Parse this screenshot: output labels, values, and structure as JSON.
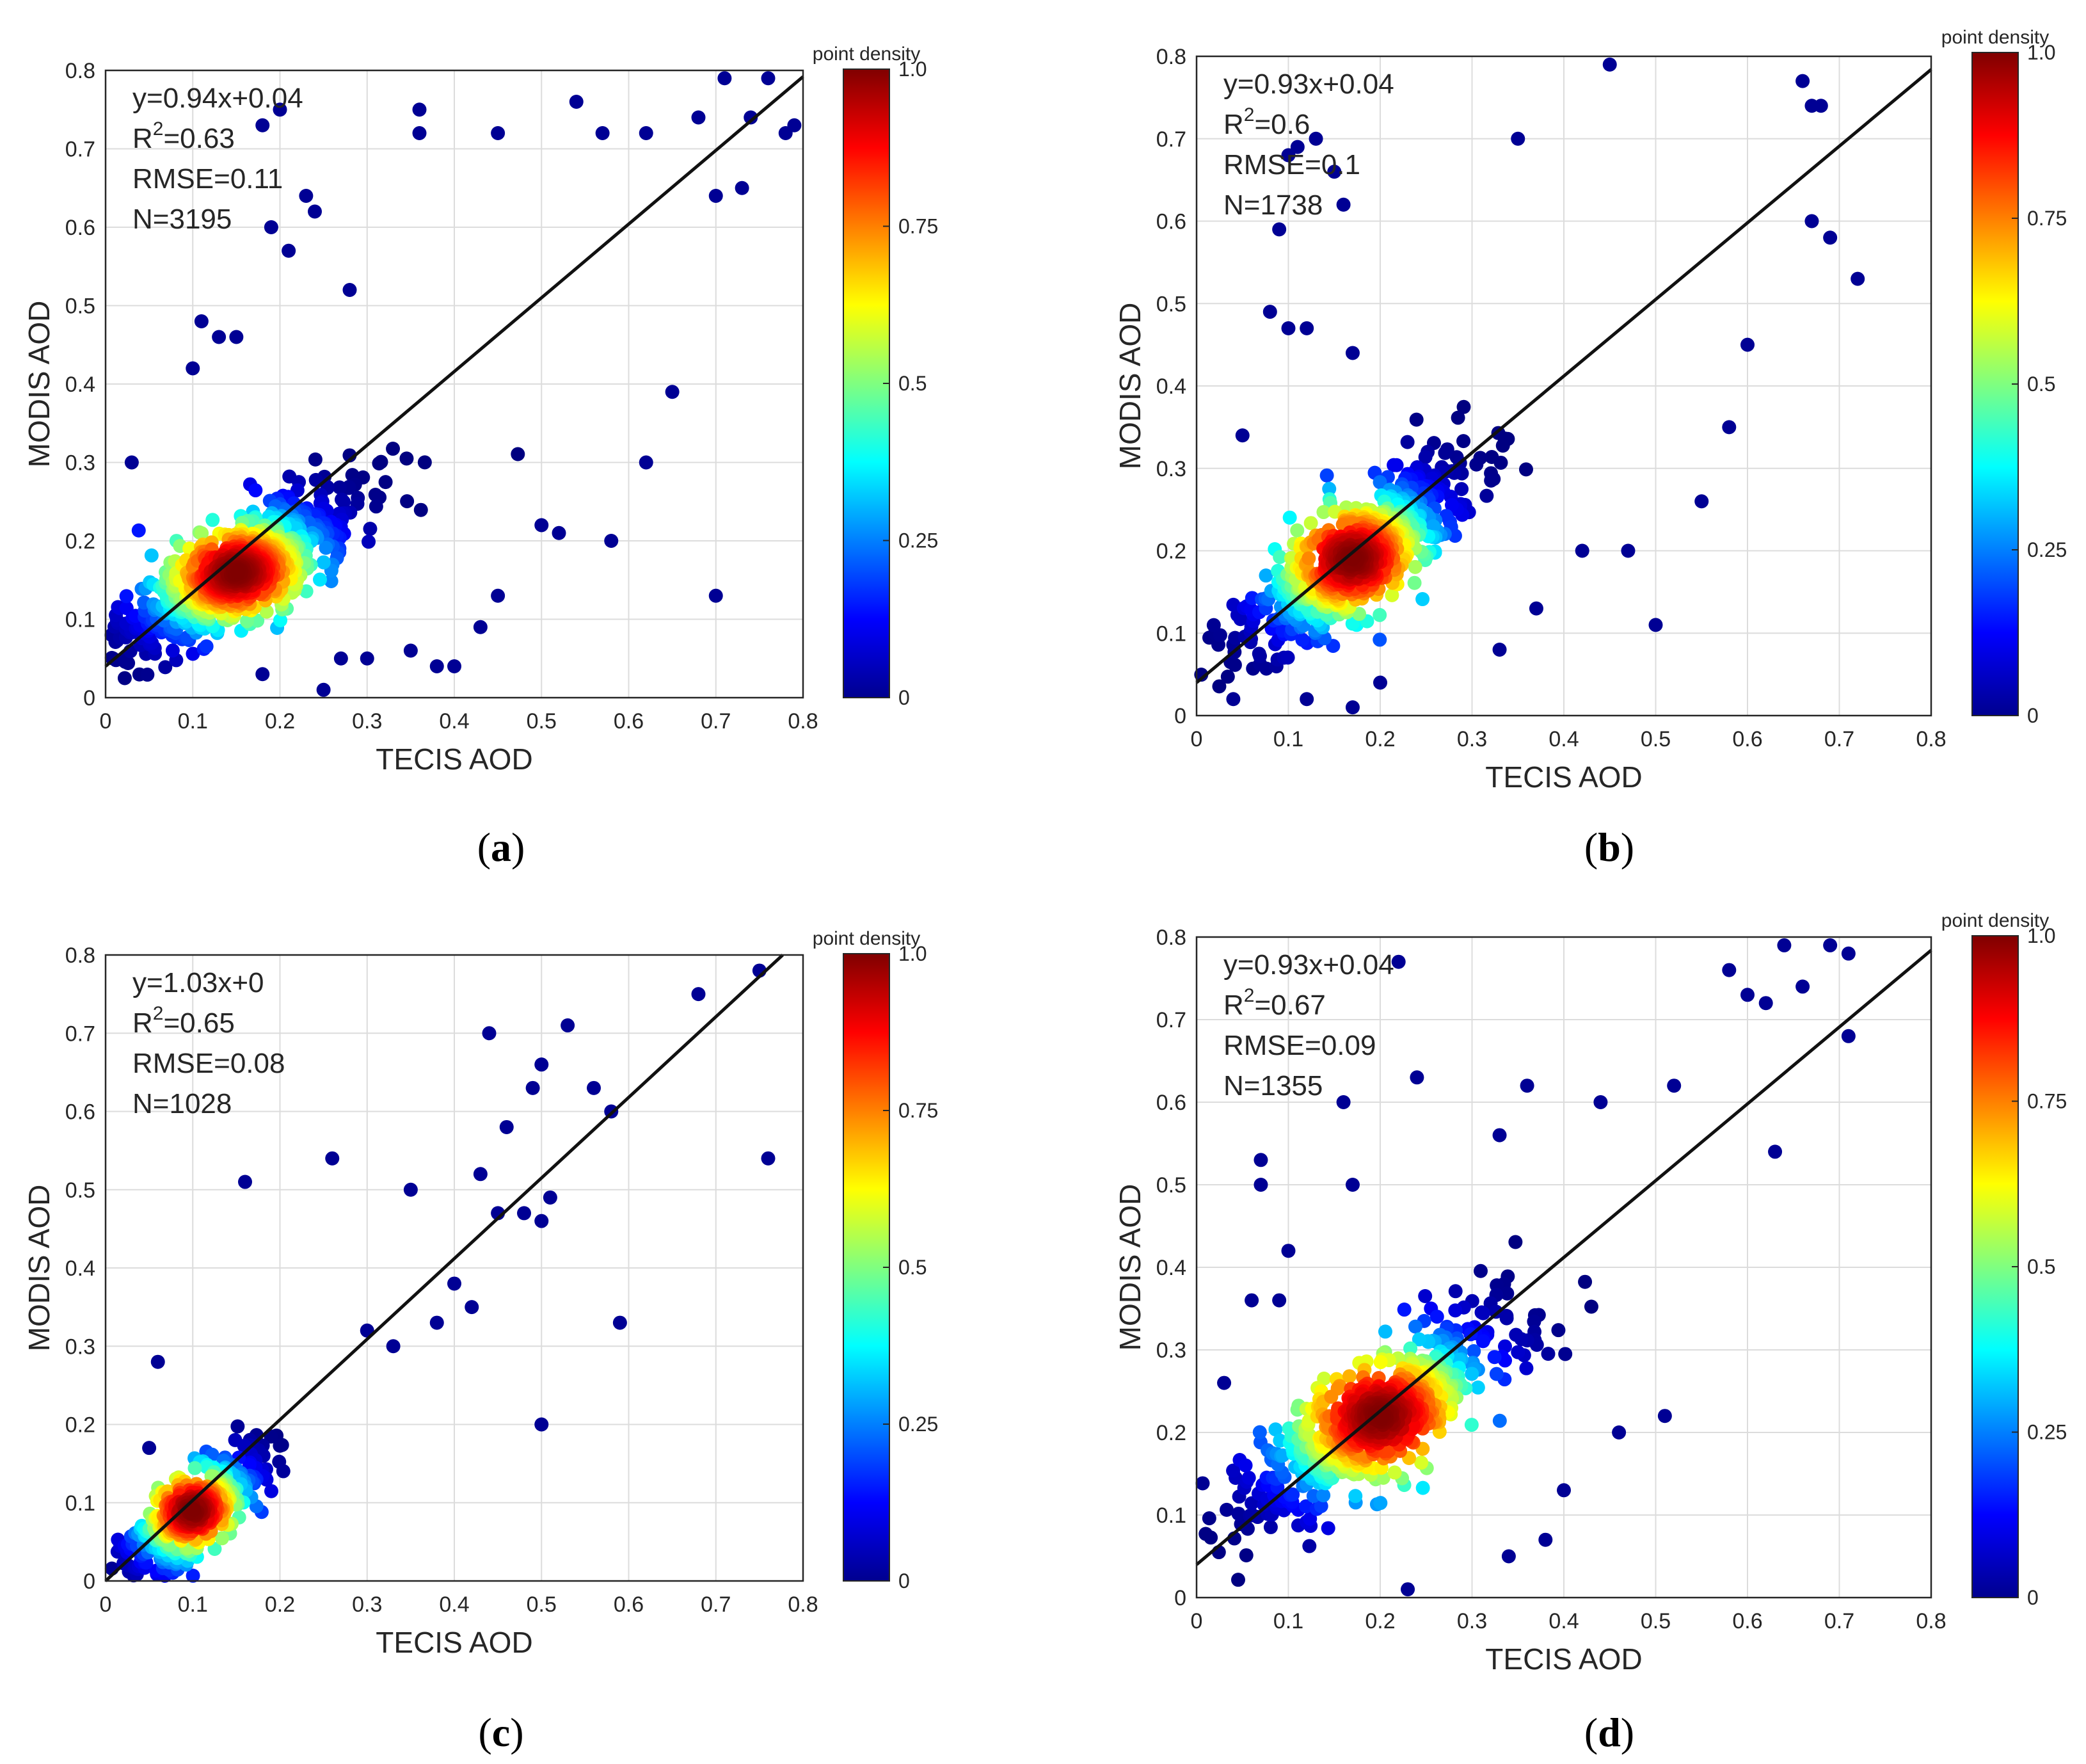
{
  "figure_title": "",
  "chart_data": [
    {
      "panel": "a",
      "caption_letter": "a",
      "type": "scatter",
      "xlabel": "TECIS AOD",
      "ylabel": "MODIS AOD",
      "xlim": [
        0,
        0.8
      ],
      "ylim": [
        0,
        0.8
      ],
      "xticks": [
        "0",
        "0.1",
        "0.2",
        "0.3",
        "0.4",
        "0.5",
        "0.6",
        "0.7",
        "0.8"
      ],
      "yticks": [
        "0",
        "0.1",
        "0.2",
        "0.3",
        "0.4",
        "0.5",
        "0.6",
        "0.7",
        "0.8"
      ],
      "grid": true,
      "stats": [
        "y=0.94x+0.04",
        "R",
        "2",
        "=0.63",
        "RMSE=0.11",
        "N=3195"
      ],
      "fit": {
        "slope": 0.94,
        "intercept": 0.04
      },
      "colorbar": {
        "label": "point density",
        "ticks": [
          "0",
          "0.25",
          "0.5",
          "0.75",
          "1.0"
        ],
        "range": [
          0,
          1
        ]
      },
      "cloud": {
        "cx": 0.15,
        "cy": 0.16,
        "sx": 0.14,
        "sy": 0.11,
        "rho": 0.8,
        "n": 1100,
        "seed": 11,
        "dense_frac": 0.35
      },
      "outliers": [
        [
          0.7,
          0.13
        ],
        [
          0.58,
          0.2
        ],
        [
          0.62,
          0.3
        ],
        [
          0.65,
          0.39
        ],
        [
          0.52,
          0.21
        ],
        [
          0.5,
          0.22
        ],
        [
          0.45,
          0.13
        ],
        [
          0.43,
          0.09
        ],
        [
          0.4,
          0.04
        ],
        [
          0.38,
          0.04
        ],
        [
          0.35,
          0.06
        ],
        [
          0.3,
          0.05
        ],
        [
          0.27,
          0.05
        ],
        [
          0.25,
          0.01
        ],
        [
          0.18,
          0.03
        ],
        [
          0.03,
          0.3
        ],
        [
          0.1,
          0.42
        ],
        [
          0.11,
          0.48
        ],
        [
          0.13,
          0.46
        ],
        [
          0.15,
          0.46
        ],
        [
          0.19,
          0.6
        ],
        [
          0.21,
          0.57
        ],
        [
          0.2,
          0.75
        ],
        [
          0.18,
          0.73
        ],
        [
          0.23,
          0.64
        ],
        [
          0.24,
          0.62
        ],
        [
          0.28,
          0.52
        ],
        [
          0.36,
          0.75
        ],
        [
          0.36,
          0.72
        ],
        [
          0.45,
          0.72
        ],
        [
          0.54,
          0.76
        ],
        [
          0.57,
          0.72
        ],
        [
          0.62,
          0.72
        ],
        [
          0.68,
          0.74
        ],
        [
          0.71,
          0.79
        ],
        [
          0.74,
          0.74
        ],
        [
          0.76,
          0.79
        ],
        [
          0.78,
          0.72
        ],
        [
          0.79,
          0.73
        ],
        [
          0.73,
          0.65
        ],
        [
          0.7,
          0.64
        ]
      ]
    },
    {
      "panel": "b",
      "caption_letter": "b",
      "type": "scatter",
      "xlabel": "TECIS AOD",
      "ylabel": "MODIS AOD",
      "xlim": [
        0,
        0.8
      ],
      "ylim": [
        0,
        0.8
      ],
      "xticks": [
        "0",
        "0.1",
        "0.2",
        "0.3",
        "0.4",
        "0.5",
        "0.6",
        "0.7",
        "0.8"
      ],
      "yticks": [
        "0",
        "0.1",
        "0.2",
        "0.3",
        "0.4",
        "0.5",
        "0.6",
        "0.7",
        "0.8"
      ],
      "grid": true,
      "stats": [
        "y=0.93x+0.04",
        "R",
        "2",
        "=0.6",
        "RMSE=0.1",
        "N=1738"
      ],
      "fit": {
        "slope": 0.93,
        "intercept": 0.04
      },
      "colorbar": {
        "label": "point density",
        "ticks": [
          "0",
          "0.25",
          "0.5",
          "0.75",
          "1.0"
        ],
        "range": [
          0,
          1
        ]
      },
      "cloud": {
        "cx": 0.17,
        "cy": 0.19,
        "sx": 0.13,
        "sy": 0.12,
        "rho": 0.78,
        "n": 800,
        "seed": 23,
        "dense_frac": 0.3
      },
      "outliers": [
        [
          0.45,
          0.79
        ],
        [
          0.66,
          0.77
        ],
        [
          0.68,
          0.74
        ],
        [
          0.67,
          0.74
        ],
        [
          0.72,
          0.53
        ],
        [
          0.67,
          0.6
        ],
        [
          0.69,
          0.58
        ],
        [
          0.35,
          0.7
        ],
        [
          0.1,
          0.68
        ],
        [
          0.11,
          0.69
        ],
        [
          0.13,
          0.7
        ],
        [
          0.15,
          0.66
        ],
        [
          0.16,
          0.62
        ],
        [
          0.09,
          0.59
        ],
        [
          0.08,
          0.49
        ],
        [
          0.1,
          0.47
        ],
        [
          0.12,
          0.47
        ],
        [
          0.05,
          0.34
        ],
        [
          0.17,
          0.44
        ],
        [
          0.55,
          0.26
        ],
        [
          0.58,
          0.35
        ],
        [
          0.5,
          0.11
        ],
        [
          0.47,
          0.2
        ],
        [
          0.42,
          0.2
        ],
        [
          0.37,
          0.13
        ],
        [
          0.33,
          0.08
        ],
        [
          0.2,
          0.04
        ],
        [
          0.17,
          0.01
        ],
        [
          0.12,
          0.02
        ],
        [
          0.04,
          0.02
        ],
        [
          0.6,
          0.45
        ]
      ]
    },
    {
      "panel": "c",
      "caption_letter": "c",
      "type": "scatter",
      "xlabel": "TECIS AOD",
      "ylabel": "MODIS AOD",
      "xlim": [
        0,
        0.8
      ],
      "ylim": [
        0,
        0.8
      ],
      "xticks": [
        "0",
        "0.1",
        "0.2",
        "0.3",
        "0.4",
        "0.5",
        "0.6",
        "0.7",
        "0.8"
      ],
      "yticks": [
        "0",
        "0.1",
        "0.2",
        "0.3",
        "0.4",
        "0.5",
        "0.6",
        "0.7",
        "0.8"
      ],
      "grid": true,
      "stats": [
        "y=1.03x+0",
        "R",
        "2",
        "=0.65",
        "RMSE=0.08",
        "N=1028"
      ],
      "fit": {
        "slope": 1.03,
        "intercept": 0.0
      },
      "colorbar": {
        "label": "point density",
        "ticks": [
          "0",
          "0.25",
          "0.5",
          "0.75",
          "1.0"
        ],
        "range": [
          0,
          1
        ]
      },
      "cloud": {
        "cx": 0.1,
        "cy": 0.09,
        "sx": 0.09,
        "sy": 0.09,
        "rho": 0.75,
        "n": 520,
        "seed": 37,
        "dense_frac": 0.3
      },
      "outliers": [
        [
          0.68,
          0.75
        ],
        [
          0.75,
          0.78
        ],
        [
          0.76,
          0.54
        ],
        [
          0.58,
          0.6
        ],
        [
          0.59,
          0.33
        ],
        [
          0.5,
          0.2
        ],
        [
          0.53,
          0.71
        ],
        [
          0.5,
          0.66
        ],
        [
          0.44,
          0.7
        ],
        [
          0.49,
          0.63
        ],
        [
          0.46,
          0.58
        ],
        [
          0.43,
          0.52
        ],
        [
          0.45,
          0.47
        ],
        [
          0.48,
          0.47
        ],
        [
          0.5,
          0.46
        ],
        [
          0.51,
          0.49
        ],
        [
          0.56,
          0.63
        ],
        [
          0.26,
          0.54
        ],
        [
          0.16,
          0.51
        ],
        [
          0.06,
          0.28
        ],
        [
          0.35,
          0.5
        ],
        [
          0.4,
          0.38
        ],
        [
          0.42,
          0.35
        ],
        [
          0.38,
          0.33
        ],
        [
          0.33,
          0.3
        ],
        [
          0.3,
          0.32
        ],
        [
          0.05,
          0.17
        ]
      ]
    },
    {
      "panel": "d",
      "caption_letter": "d",
      "type": "scatter",
      "xlabel": "TECIS AOD",
      "ylabel": "MODIS AOD",
      "xlim": [
        0,
        0.8
      ],
      "ylim": [
        0,
        0.8
      ],
      "xticks": [
        "0",
        "0.1",
        "0.2",
        "0.3",
        "0.4",
        "0.5",
        "0.6",
        "0.7",
        "0.8"
      ],
      "yticks": [
        "0",
        "0.1",
        "0.2",
        "0.3",
        "0.4",
        "0.5",
        "0.6",
        "0.7",
        "0.8"
      ],
      "grid": true,
      "stats": [
        "y=0.93x+0.04",
        "R",
        "2",
        "=0.67",
        "RMSE=0.09",
        "N=1355"
      ],
      "fit": {
        "slope": 0.93,
        "intercept": 0.04
      },
      "colorbar": {
        "label": "point density",
        "ticks": [
          "0",
          "0.25",
          "0.5",
          "0.75",
          "1.0"
        ],
        "range": [
          0,
          1
        ]
      },
      "cloud": {
        "cx": 0.2,
        "cy": 0.22,
        "sx": 0.16,
        "sy": 0.14,
        "rho": 0.82,
        "n": 800,
        "seed": 53,
        "dense_frac": 0.25
      },
      "outliers": [
        [
          0.64,
          0.79
        ],
        [
          0.69,
          0.79
        ],
        [
          0.71,
          0.78
        ],
        [
          0.66,
          0.74
        ],
        [
          0.6,
          0.73
        ],
        [
          0.62,
          0.72
        ],
        [
          0.58,
          0.76
        ],
        [
          0.71,
          0.68
        ],
        [
          0.63,
          0.54
        ],
        [
          0.51,
          0.22
        ],
        [
          0.46,
          0.2
        ],
        [
          0.4,
          0.13
        ],
        [
          0.38,
          0.07
        ],
        [
          0.34,
          0.05
        ],
        [
          0.23,
          0.01
        ],
        [
          0.22,
          0.77
        ],
        [
          0.24,
          0.63
        ],
        [
          0.16,
          0.6
        ],
        [
          0.07,
          0.53
        ],
        [
          0.07,
          0.5
        ],
        [
          0.1,
          0.42
        ],
        [
          0.06,
          0.36
        ],
        [
          0.09,
          0.36
        ],
        [
          0.03,
          0.26
        ],
        [
          0.17,
          0.5
        ],
        [
          0.33,
          0.56
        ],
        [
          0.36,
          0.62
        ],
        [
          0.44,
          0.6
        ],
        [
          0.52,
          0.62
        ]
      ]
    }
  ]
}
